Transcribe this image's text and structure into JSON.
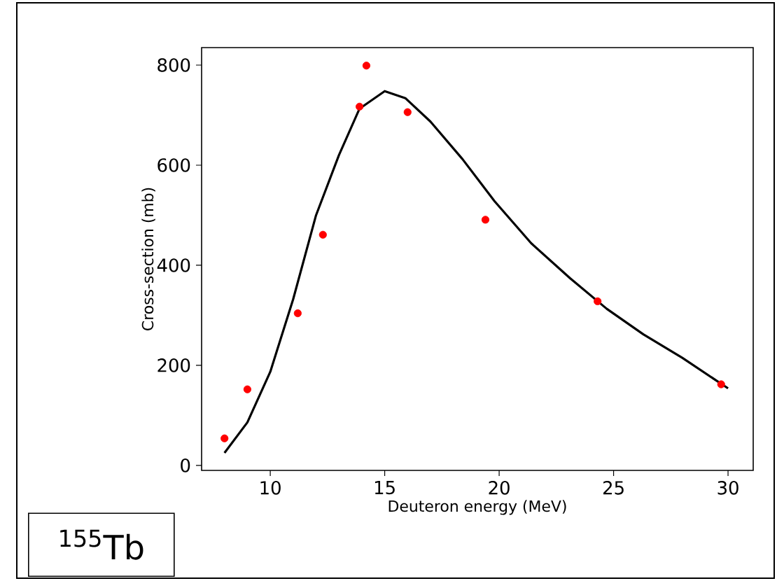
{
  "chart_data": {
    "type": "scatter",
    "xlabel": "Deuteron energy (MeV)",
    "ylabel": "Cross-section (mb)",
    "xlim": [
      7,
      31.1
    ],
    "ylim": [
      -10,
      835
    ],
    "xticks": [
      10,
      15,
      20,
      25,
      30
    ],
    "yticks": [
      0,
      200,
      400,
      600,
      800
    ],
    "grid": false,
    "annotations": [
      "$^{155}$Tb"
    ],
    "series": [
      {
        "color": "#ff0000",
        "marker": "circle",
        "x": [
          8.0,
          9.0,
          11.2,
          12.3,
          13.9,
          14.2,
          16.0,
          19.4,
          24.3,
          29.7
        ],
        "values": [
          54,
          152,
          304,
          461,
          717,
          799,
          706,
          491,
          328,
          162
        ]
      },
      {
        "type": "line",
        "color": "#000000",
        "marker": "none",
        "x": [
          8.0,
          9.0,
          10.0,
          11.0,
          12.0,
          13.0,
          13.9,
          15.0,
          15.9,
          17.0,
          18.4,
          19.8,
          21.4,
          23.1,
          24.7,
          26.3,
          28.0,
          30.0
        ],
        "values": [
          25,
          86,
          187,
          332,
          500,
          620,
          713,
          748,
          734,
          687,
          612,
          528,
          444,
          374,
          313,
          262,
          215,
          154
        ]
      }
    ]
  }
}
